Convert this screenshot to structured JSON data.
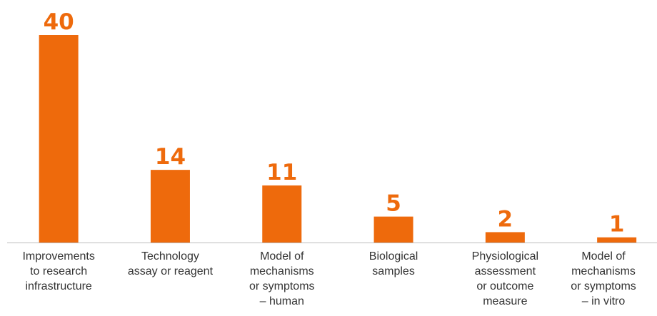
{
  "chart_data": {
    "type": "bar",
    "categories": [
      "Improvements\nto research\ninfrastructure",
      "Technology\nassay or reagent",
      "Model of\nmechanisms\nor symptoms\n– human",
      "Biological\nsamples",
      "Physiological\nassessment\nor outcome\nmeasure",
      "Model of\nmechanisms\nor symptoms\n– in vitro"
    ],
    "values": [
      40,
      14,
      11,
      5,
      2,
      1
    ],
    "color": "#ee6a0c",
    "ylim": [
      0,
      40
    ]
  }
}
